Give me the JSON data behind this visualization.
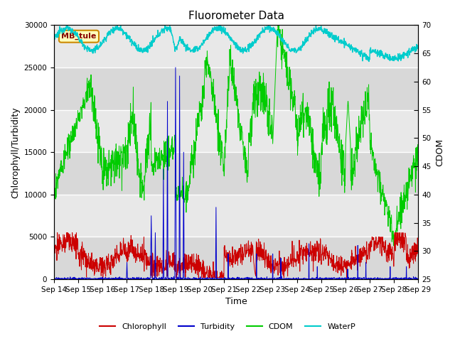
{
  "title": "Fluorometer Data",
  "xlabel": "Time",
  "ylabel_left": "Chlorophyll/Turbidity",
  "ylabel_right": "CDOM",
  "ylim_left": [
    0,
    30000
  ],
  "ylim_right": [
    25,
    70
  ],
  "xlim": [
    0,
    360
  ],
  "xtick_labels": [
    "Sep 14",
    "Sep 15",
    "Sep 16",
    "Sep 17",
    "Sep 18",
    "Sep 19",
    "Sep 20",
    "Sep 21",
    "Sep 22",
    "Sep 23",
    "Sep 24",
    "Sep 25",
    "Sep 26",
    "Sep 27",
    "Sep 28",
    "Sep 29"
  ],
  "xtick_positions": [
    0,
    24,
    48,
    72,
    96,
    120,
    144,
    168,
    192,
    216,
    240,
    264,
    288,
    312,
    336,
    360
  ],
  "colors": {
    "chlorophyll": "#cc0000",
    "turbidity": "#0000cc",
    "cdom": "#00cc00",
    "waterp": "#00cccc",
    "bg_light": "#e8e8e8",
    "bg_dark": "#d0d0d0",
    "box_fill": "#ffffbb",
    "box_edge": "#cc8800",
    "box_text": "#880000"
  },
  "annotation_text": "MB_tule",
  "title_fontsize": 11,
  "axis_fontsize": 9,
  "tick_fontsize": 7.5
}
